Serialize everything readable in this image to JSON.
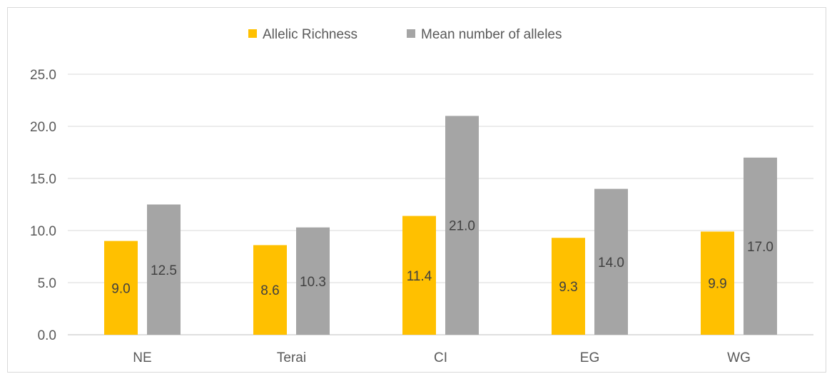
{
  "chart_data": {
    "type": "bar",
    "categories": [
      "NE",
      "Terai",
      "CI",
      "EG",
      "WG"
    ],
    "series": [
      {
        "name": "Allelic Richness",
        "color": "#FFC000",
        "values": [
          9.0,
          8.6,
          11.4,
          9.3,
          9.9
        ],
        "labels": [
          "9.0",
          "8.6",
          "11.4",
          "9.3",
          "9.9"
        ]
      },
      {
        "name": "Mean number of alleles",
        "color": "#A5A5A5",
        "values": [
          12.5,
          10.3,
          21.0,
          14.0,
          17.0
        ],
        "labels": [
          "12.5",
          "10.3",
          "21.0",
          "14.0",
          "17.0"
        ]
      }
    ],
    "ylim": [
      0,
      25
    ],
    "yticks": [
      "0.0",
      "5.0",
      "10.0",
      "15.0",
      "20.0",
      "25.0"
    ],
    "ytick_values": [
      0,
      5,
      10,
      15,
      20,
      25
    ],
    "grid": true,
    "legend_position": "top-center",
    "title": "",
    "xlabel": "",
    "ylabel": ""
  }
}
